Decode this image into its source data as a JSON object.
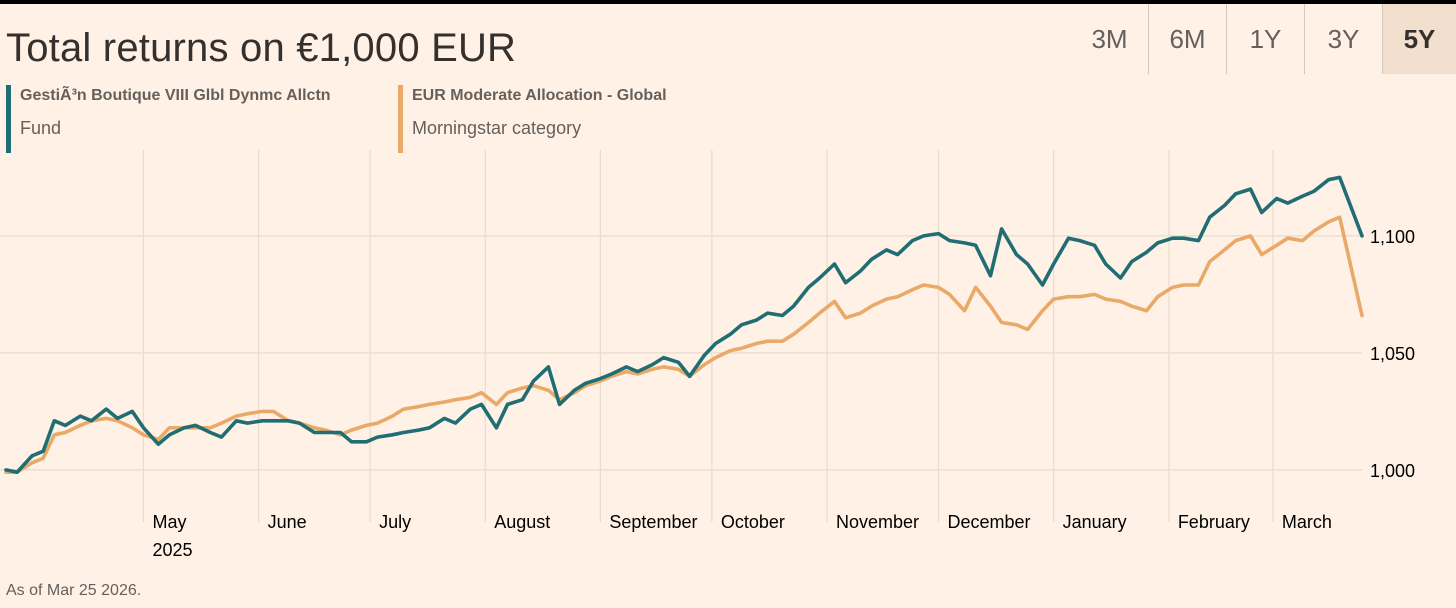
{
  "chart_data": {
    "type": "line",
    "title": "Total returns on €1,000 EUR",
    "ylim": [
      985,
      1135
    ],
    "yticks": [
      {
        "value": 1000,
        "label": "1,000"
      },
      {
        "value": 1050,
        "label": "1,050"
      },
      {
        "value": 1100,
        "label": "1,100"
      }
    ],
    "x_start": "2025-03-25",
    "x_end": "2026-03-25",
    "months": [
      {
        "label": "May",
        "sub": "2025",
        "date": "2025-05-01"
      },
      {
        "label": "June",
        "sub": "",
        "date": "2025-06-01"
      },
      {
        "label": "July",
        "sub": "",
        "date": "2025-07-01"
      },
      {
        "label": "August",
        "sub": "",
        "date": "2025-08-01"
      },
      {
        "label": "September",
        "sub": "",
        "date": "2025-09-01"
      },
      {
        "label": "October",
        "sub": "",
        "date": "2025-10-01"
      },
      {
        "label": "November",
        "sub": "",
        "date": "2025-11-01"
      },
      {
        "label": "December",
        "sub": "",
        "date": "2025-12-01"
      },
      {
        "label": "January",
        "sub": "",
        "date": "2026-01-01"
      },
      {
        "label": "February",
        "sub": "",
        "date": "2026-02-01"
      },
      {
        "label": "March",
        "sub": "",
        "date": "2026-03-01"
      }
    ],
    "series": [
      {
        "name": "GestiÃ³n Boutique VIII Glbl Dynmc Allctn",
        "description": "Fund",
        "color": "#206e73",
        "points": [
          [
            "2025-03-25",
            1000
          ],
          [
            "2025-03-28",
            999
          ],
          [
            "2025-04-01",
            1006
          ],
          [
            "2025-04-04",
            1008
          ],
          [
            "2025-04-07",
            1021
          ],
          [
            "2025-04-10",
            1019
          ],
          [
            "2025-04-14",
            1023
          ],
          [
            "2025-04-17",
            1021
          ],
          [
            "2025-04-21",
            1026
          ],
          [
            "2025-04-24",
            1022
          ],
          [
            "2025-04-28",
            1025
          ],
          [
            "2025-05-01",
            1018
          ],
          [
            "2025-05-05",
            1011
          ],
          [
            "2025-05-08",
            1015
          ],
          [
            "2025-05-12",
            1018
          ],
          [
            "2025-05-15",
            1019
          ],
          [
            "2025-05-19",
            1016
          ],
          [
            "2025-05-22",
            1014
          ],
          [
            "2025-05-26",
            1021
          ],
          [
            "2025-05-29",
            1020
          ],
          [
            "2025-06-02",
            1021
          ],
          [
            "2025-06-05",
            1021
          ],
          [
            "2025-06-09",
            1021
          ],
          [
            "2025-06-12",
            1020
          ],
          [
            "2025-06-16",
            1016
          ],
          [
            "2025-06-19",
            1016
          ],
          [
            "2025-06-23",
            1016
          ],
          [
            "2025-06-26",
            1012
          ],
          [
            "2025-06-30",
            1012
          ],
          [
            "2025-07-03",
            1014
          ],
          [
            "2025-07-07",
            1015
          ],
          [
            "2025-07-10",
            1016
          ],
          [
            "2025-07-14",
            1017
          ],
          [
            "2025-07-17",
            1018
          ],
          [
            "2025-07-21",
            1022
          ],
          [
            "2025-07-24",
            1020
          ],
          [
            "2025-07-28",
            1026
          ],
          [
            "2025-07-31",
            1028
          ],
          [
            "2025-08-04",
            1018
          ],
          [
            "2025-08-07",
            1028
          ],
          [
            "2025-08-11",
            1030
          ],
          [
            "2025-08-14",
            1038
          ],
          [
            "2025-08-18",
            1044
          ],
          [
            "2025-08-21",
            1028
          ],
          [
            "2025-08-25",
            1034
          ],
          [
            "2025-08-28",
            1037
          ],
          [
            "2025-09-01",
            1039
          ],
          [
            "2025-09-04",
            1041
          ],
          [
            "2025-09-08",
            1044
          ],
          [
            "2025-09-11",
            1042
          ],
          [
            "2025-09-15",
            1045
          ],
          [
            "2025-09-18",
            1048
          ],
          [
            "2025-09-22",
            1046
          ],
          [
            "2025-09-25",
            1040
          ],
          [
            "2025-09-29",
            1049
          ],
          [
            "2025-10-02",
            1054
          ],
          [
            "2025-10-06",
            1058
          ],
          [
            "2025-10-09",
            1062
          ],
          [
            "2025-10-13",
            1064
          ],
          [
            "2025-10-16",
            1067
          ],
          [
            "2025-10-20",
            1066
          ],
          [
            "2025-10-23",
            1070
          ],
          [
            "2025-10-27",
            1078
          ],
          [
            "2025-10-30",
            1082
          ],
          [
            "2025-11-03",
            1088
          ],
          [
            "2025-11-06",
            1080
          ],
          [
            "2025-11-10",
            1085
          ],
          [
            "2025-11-13",
            1090
          ],
          [
            "2025-11-17",
            1094
          ],
          [
            "2025-11-20",
            1092
          ],
          [
            "2025-11-24",
            1098
          ],
          [
            "2025-11-27",
            1100
          ],
          [
            "2025-12-01",
            1101
          ],
          [
            "2025-12-04",
            1098
          ],
          [
            "2025-12-08",
            1097
          ],
          [
            "2025-12-11",
            1096
          ],
          [
            "2025-12-15",
            1083
          ],
          [
            "2025-12-18",
            1103
          ],
          [
            "2025-12-22",
            1092
          ],
          [
            "2025-12-25",
            1088
          ],
          [
            "2025-12-29",
            1079
          ],
          [
            "2026-01-01",
            1088
          ],
          [
            "2026-01-05",
            1099
          ],
          [
            "2026-01-08",
            1098
          ],
          [
            "2026-01-12",
            1096
          ],
          [
            "2026-01-15",
            1088
          ],
          [
            "2026-01-19",
            1082
          ],
          [
            "2026-01-22",
            1089
          ],
          [
            "2026-01-26",
            1093
          ],
          [
            "2026-01-29",
            1097
          ],
          [
            "2026-02-02",
            1099
          ],
          [
            "2026-02-05",
            1099
          ],
          [
            "2026-02-09",
            1098
          ],
          [
            "2026-02-12",
            1108
          ],
          [
            "2026-02-16",
            1113
          ],
          [
            "2026-02-19",
            1118
          ],
          [
            "2026-02-23",
            1120
          ],
          [
            "2026-02-26",
            1110
          ],
          [
            "2026-03-02",
            1116
          ],
          [
            "2026-03-05",
            1114
          ],
          [
            "2026-03-09",
            1117
          ],
          [
            "2026-03-12",
            1119
          ],
          [
            "2026-03-16",
            1124
          ],
          [
            "2026-03-19",
            1125
          ],
          [
            "2026-03-25",
            1100
          ]
        ]
      },
      {
        "name": "EUR Moderate Allocation - Global",
        "description": "Morningstar category",
        "color": "#e9a969",
        "points": [
          [
            "2025-03-25",
            999
          ],
          [
            "2025-03-28",
            999
          ],
          [
            "2025-04-01",
            1003
          ],
          [
            "2025-04-04",
            1005
          ],
          [
            "2025-04-07",
            1015
          ],
          [
            "2025-04-10",
            1016
          ],
          [
            "2025-04-14",
            1019
          ],
          [
            "2025-04-17",
            1021
          ],
          [
            "2025-04-21",
            1022
          ],
          [
            "2025-04-24",
            1021
          ],
          [
            "2025-04-28",
            1018
          ],
          [
            "2025-05-01",
            1015
          ],
          [
            "2025-05-05",
            1013
          ],
          [
            "2025-05-08",
            1018
          ],
          [
            "2025-05-12",
            1018
          ],
          [
            "2025-05-15",
            1018
          ],
          [
            "2025-05-19",
            1018
          ],
          [
            "2025-05-22",
            1020
          ],
          [
            "2025-05-26",
            1023
          ],
          [
            "2025-05-29",
            1024
          ],
          [
            "2025-06-02",
            1025
          ],
          [
            "2025-06-05",
            1025
          ],
          [
            "2025-06-09",
            1021
          ],
          [
            "2025-06-12",
            1020
          ],
          [
            "2025-06-16",
            1018
          ],
          [
            "2025-06-19",
            1017
          ],
          [
            "2025-06-23",
            1015
          ],
          [
            "2025-06-26",
            1017
          ],
          [
            "2025-06-30",
            1019
          ],
          [
            "2025-07-03",
            1020
          ],
          [
            "2025-07-07",
            1023
          ],
          [
            "2025-07-10",
            1026
          ],
          [
            "2025-07-14",
            1027
          ],
          [
            "2025-07-17",
            1028
          ],
          [
            "2025-07-21",
            1029
          ],
          [
            "2025-07-24",
            1030
          ],
          [
            "2025-07-28",
            1031
          ],
          [
            "2025-07-31",
            1033
          ],
          [
            "2025-08-04",
            1028
          ],
          [
            "2025-08-07",
            1033
          ],
          [
            "2025-08-11",
            1035
          ],
          [
            "2025-08-14",
            1036
          ],
          [
            "2025-08-18",
            1034
          ],
          [
            "2025-08-21",
            1030
          ],
          [
            "2025-08-25",
            1033
          ],
          [
            "2025-08-28",
            1036
          ],
          [
            "2025-09-01",
            1038
          ],
          [
            "2025-09-04",
            1040
          ],
          [
            "2025-09-08",
            1042
          ],
          [
            "2025-09-11",
            1041
          ],
          [
            "2025-09-15",
            1043
          ],
          [
            "2025-09-18",
            1044
          ],
          [
            "2025-09-22",
            1043
          ],
          [
            "2025-09-25",
            1040
          ],
          [
            "2025-09-29",
            1045
          ],
          [
            "2025-10-02",
            1048
          ],
          [
            "2025-10-06",
            1051
          ],
          [
            "2025-10-09",
            1052
          ],
          [
            "2025-10-13",
            1054
          ],
          [
            "2025-10-16",
            1055
          ],
          [
            "2025-10-20",
            1055
          ],
          [
            "2025-10-23",
            1058
          ],
          [
            "2025-10-27",
            1063
          ],
          [
            "2025-10-30",
            1067
          ],
          [
            "2025-11-03",
            1072
          ],
          [
            "2025-11-06",
            1065
          ],
          [
            "2025-11-10",
            1067
          ],
          [
            "2025-11-13",
            1070
          ],
          [
            "2025-11-17",
            1073
          ],
          [
            "2025-11-20",
            1074
          ],
          [
            "2025-11-24",
            1077
          ],
          [
            "2025-11-27",
            1079
          ],
          [
            "2025-12-01",
            1078
          ],
          [
            "2025-12-04",
            1075
          ],
          [
            "2025-12-08",
            1068
          ],
          [
            "2025-12-11",
            1078
          ],
          [
            "2025-12-15",
            1070
          ],
          [
            "2025-12-18",
            1063
          ],
          [
            "2025-12-22",
            1062
          ],
          [
            "2025-12-25",
            1060
          ],
          [
            "2025-12-29",
            1068
          ],
          [
            "2026-01-01",
            1073
          ],
          [
            "2026-01-05",
            1074
          ],
          [
            "2026-01-08",
            1074
          ],
          [
            "2026-01-12",
            1075
          ],
          [
            "2026-01-15",
            1073
          ],
          [
            "2026-01-19",
            1072
          ],
          [
            "2026-01-22",
            1070
          ],
          [
            "2026-01-26",
            1068
          ],
          [
            "2026-01-29",
            1074
          ],
          [
            "2026-02-02",
            1078
          ],
          [
            "2026-02-05",
            1079
          ],
          [
            "2026-02-09",
            1079
          ],
          [
            "2026-02-12",
            1089
          ],
          [
            "2026-02-16",
            1094
          ],
          [
            "2026-02-19",
            1098
          ],
          [
            "2026-02-23",
            1100
          ],
          [
            "2026-02-26",
            1092
          ],
          [
            "2026-03-02",
            1096
          ],
          [
            "2026-03-05",
            1099
          ],
          [
            "2026-03-09",
            1098
          ],
          [
            "2026-03-12",
            1102
          ],
          [
            "2026-03-16",
            1106
          ],
          [
            "2026-03-19",
            1108
          ],
          [
            "2026-03-25",
            1066
          ]
        ]
      }
    ]
  },
  "range_buttons": [
    {
      "label": "3M",
      "active": false
    },
    {
      "label": "6M",
      "active": false
    },
    {
      "label": "1Y",
      "active": false
    },
    {
      "label": "3Y",
      "active": false
    },
    {
      "label": "5Y",
      "active": true
    }
  ],
  "footnote": "As of Mar 25 2026.",
  "colors": {
    "background": "#fff1e5",
    "grid": "#e8dbcf",
    "text": "#33302e",
    "muted": "#66605c"
  }
}
